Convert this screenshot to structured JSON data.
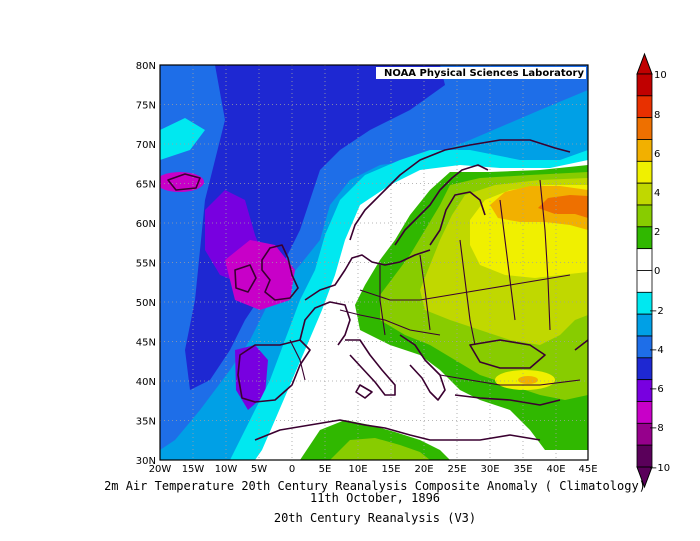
{
  "map": {
    "credit": "NOAA Physical Sciences Laboratory",
    "lat_labels": [
      "80N",
      "75N",
      "70N",
      "65N",
      "60N",
      "55N",
      "50N",
      "45N",
      "40N",
      "35N",
      "30N"
    ],
    "lon_labels": [
      "20W",
      "15W",
      "10W",
      "5W",
      "0",
      "5E",
      "10E",
      "15E",
      "20E",
      "25E",
      "30E",
      "35E",
      "40E",
      "45E"
    ],
    "title_line1": "2m Air Temperature 20th Century Reanalysis Composite Anomaly ( Climatology)",
    "title_line2": "11th October, 1896",
    "source": "20th Century Reanalysis (V3)",
    "extent": {
      "lon": [
        -20,
        45
      ],
      "lat": [
        30,
        80
      ]
    },
    "grid": true
  },
  "colorbar": {
    "labels": [
      "10",
      "8",
      "6",
      "4",
      "2",
      "0",
      "−2",
      "−4",
      "−6",
      "−8",
      "−10"
    ],
    "colors_top_to_bottom": [
      "#c00000",
      "#e83000",
      "#ee7000",
      "#f2b000",
      "#f0f000",
      "#c0d800",
      "#88cc00",
      "#30b800",
      "#ffffff",
      "#ffffff",
      "#00e8f0",
      "#00a0e6",
      "#1e6ee8",
      "#1e28d2",
      "#7800e0",
      "#c800c8",
      "#96008c",
      "#5a005a"
    ]
  },
  "colors": {
    "coast": "#3a0030",
    "grid": "#a0a0a0",
    "frame": "#000000"
  }
}
